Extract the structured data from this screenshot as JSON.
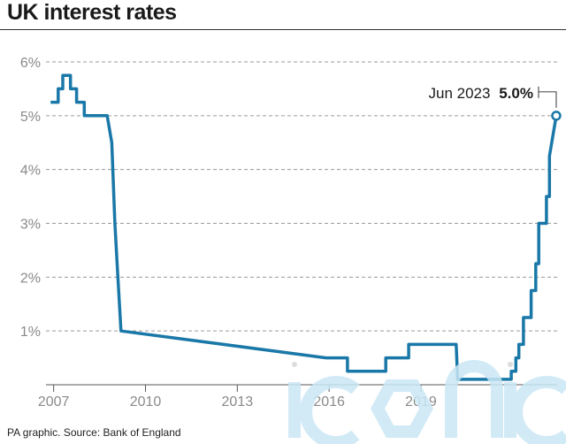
{
  "header": {
    "title": "UK interest rates"
  },
  "footer": {
    "source": "PA graphic. Source: Bank of England"
  },
  "watermark": {
    "text": "iconic"
  },
  "colors": {
    "line": "#1a78a8",
    "grid": "#9a9a9a",
    "tick_text": "#8a8a8a",
    "axis": "#555555"
  },
  "chart_data": {
    "type": "line",
    "title": "UK interest rates",
    "xlabel": "",
    "ylabel": "",
    "ylim": [
      0,
      6
    ],
    "xlim": [
      2006.75,
      2023.45
    ],
    "grid": "horizontal dashed",
    "x_ticks": [
      2007,
      2010,
      2013,
      2016,
      2019
    ],
    "x_tick_labels": [
      "2007",
      "2010",
      "2013",
      "2016",
      "2019"
    ],
    "y_ticks": [
      1,
      2,
      3,
      4,
      5,
      6
    ],
    "y_tick_labels": [
      "1%",
      "2%",
      "3%",
      "4%",
      "5%",
      "6%"
    ],
    "annotation": {
      "date_label": "Jun 2023",
      "value_label": "5.0%",
      "x": 2023.42,
      "y": 5.0
    },
    "series": [
      {
        "values_x": [
          2006.9,
          2007.15,
          2007.15,
          2007.3,
          2007.3,
          2007.55,
          2007.55,
          2007.75,
          2007.75,
          2008.0,
          2008.0,
          2008.1,
          2008.1,
          2008.2,
          2008.2,
          2008.75,
          2008.9,
          2009.0,
          2009.1,
          2009.2,
          2015.9,
          2016.6,
          2016.6,
          2017.85,
          2017.85,
          2018.6,
          2018.6,
          2020.15,
          2020.2,
          2021.95,
          2021.95,
          2022.1,
          2022.1,
          2022.2,
          2022.2,
          2022.35,
          2022.35,
          2022.6,
          2022.6,
          2022.75,
          2022.75,
          2022.85,
          2022.85,
          2023.1,
          2023.1,
          2023.2,
          2023.2,
          2023.42
        ],
        "values": [
          5.25,
          5.25,
          5.5,
          5.5,
          5.75,
          5.75,
          5.5,
          5.5,
          5.25,
          5.25,
          5.0,
          5.0,
          5.0,
          5.0,
          5.0,
          5.0,
          4.5,
          3.0,
          2.0,
          1.0,
          0.5,
          0.5,
          0.25,
          0.25,
          0.5,
          0.5,
          0.75,
          0.75,
          0.1,
          0.1,
          0.25,
          0.25,
          0.5,
          0.5,
          0.75,
          0.75,
          1.25,
          1.25,
          1.75,
          1.75,
          2.25,
          2.25,
          3.0,
          3.0,
          3.5,
          3.5,
          4.25,
          5.0
        ]
      }
    ]
  }
}
